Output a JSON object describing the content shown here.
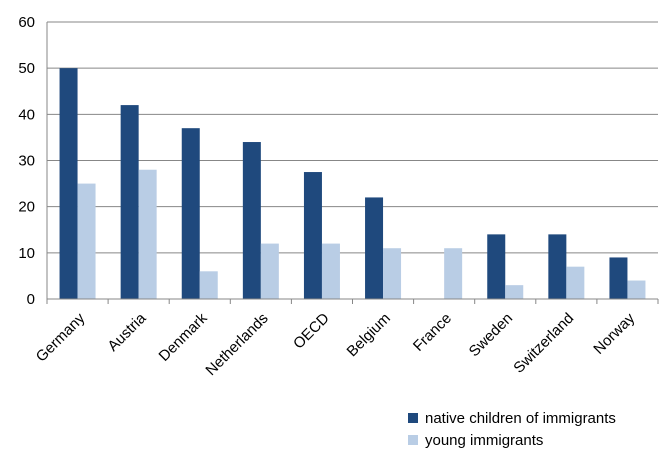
{
  "chart_data": {
    "type": "bar",
    "title": "",
    "xlabel": "",
    "ylabel": "",
    "ylim": [
      0,
      60
    ],
    "y_ticks": [
      0,
      10,
      20,
      30,
      40,
      50,
      60
    ],
    "grid": "horizontal",
    "legend_position": "bottom-right",
    "categories": [
      "Germany",
      "Austria",
      "Denmark",
      "Netherlands",
      "OECD",
      "Belgium",
      "France",
      "Sweden",
      "Switzerland",
      "Norway"
    ],
    "series": [
      {
        "name": "native children of immigrants",
        "color": "#1f497d",
        "values": [
          50,
          42,
          37,
          34,
          27.5,
          22,
          null,
          14,
          14,
          9
        ]
      },
      {
        "name": "young immigrants",
        "color": "#b9cde5",
        "values": [
          25,
          28,
          6,
          12,
          12,
          11,
          11,
          3,
          7,
          4
        ]
      }
    ]
  }
}
